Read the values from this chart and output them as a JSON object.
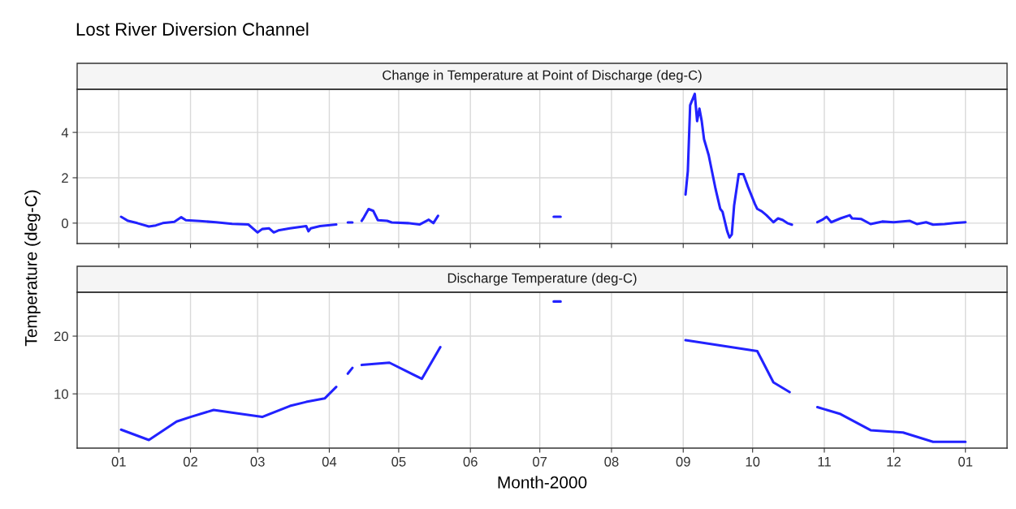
{
  "chart_data": [
    {
      "type": "line",
      "title": "Lost River Diversion Channel",
      "subtitle": "Change in Temperature at Point of Discharge (deg-C)",
      "ylabel": "Temperature (deg-C)",
      "xlim": [
        "1999-12-14",
        "2001-01-19"
      ],
      "ylim": [
        -0.9,
        5.9
      ],
      "yticks": [
        0,
        2,
        4
      ],
      "xticks": [
        {
          "value": "2000-01-01",
          "label": null
        },
        {
          "value": "2000-02-01",
          "label": null
        },
        {
          "value": "2000-03-01",
          "label": null
        },
        {
          "value": "2000-04-01",
          "label": null
        },
        {
          "value": "2000-05-01",
          "label": null
        },
        {
          "value": "2000-06-01",
          "label": null
        },
        {
          "value": "2000-07-01",
          "label": null
        },
        {
          "value": "2000-08-01",
          "label": null
        },
        {
          "value": "2000-09-01",
          "label": null
        },
        {
          "value": "2000-10-01",
          "label": null
        },
        {
          "value": "2000-11-01",
          "label": null
        },
        {
          "value": "2000-12-01",
          "label": null
        },
        {
          "value": "2001-01-01",
          "label": null
        }
      ],
      "tick_labels": "y",
      "grid": true,
      "series": [
        {
          "color": "#2222ff",
          "x": [
            "2000-01-02",
            "2000-01-05",
            "2000-01-09",
            "2000-01-14",
            "2000-01-17",
            "2000-01-20",
            "2000-01-25",
            "2000-01-28",
            "2000-01-30",
            "2000-02-05",
            "2000-02-12",
            "2000-02-19",
            "2000-02-26",
            "2000-03-01",
            "2000-03-03",
            "2000-03-06",
            "2000-03-08",
            "2000-03-10",
            "2000-03-15",
            "2000-03-22",
            "2000-03-23",
            "2000-03-24",
            "2000-03-28",
            "2000-04-04",
            "2000-04-06",
            "2000-04-09",
            "2000-04-11",
            "2000-04-13",
            "2000-04-15",
            "2000-04-16",
            "2000-04-18",
            "2000-04-20",
            "2000-04-22",
            "2000-04-26",
            "2000-04-28",
            "2000-05-05",
            "2000-05-10",
            "2000-05-14",
            "2000-05-16",
            "2000-05-18",
            "2000-06-15",
            "2000-07-07",
            "2000-07-10",
            "2000-08-10",
            "2000-09-02",
            "2000-09-03",
            "2000-09-04",
            "2000-09-06",
            "2000-09-07",
            "2000-09-08",
            "2000-09-09",
            "2000-09-10",
            "2000-09-12",
            "2000-09-14",
            "2000-09-15",
            "2000-09-17",
            "2000-09-18",
            "2000-09-20",
            "2000-09-21",
            "2000-09-22",
            "2000-09-23",
            "2000-09-25",
            "2000-09-27",
            "2000-09-29",
            "2000-10-02",
            "2000-10-03",
            "2000-10-05",
            "2000-10-07",
            "2000-10-10",
            "2000-10-12",
            "2000-10-14",
            "2000-10-16",
            "2000-10-18",
            "2000-10-23",
            "2000-10-29",
            "2000-10-31",
            "2000-11-02",
            "2000-11-04",
            "2000-11-08",
            "2000-11-12",
            "2000-11-13",
            "2000-11-17",
            "2000-11-21",
            "2000-11-26",
            "2000-12-01",
            "2000-12-08",
            "2000-12-11",
            "2000-12-15",
            "2000-12-18",
            "2000-12-23",
            "2000-12-27",
            "2001-01-01"
          ],
          "values": [
            0.28,
            0.1,
            0,
            -0.15,
            -0.1,
            0,
            0.06,
            0.26,
            0.13,
            0.09,
            0.04,
            -0.03,
            -0.06,
            -0.41,
            -0.26,
            -0.23,
            -0.41,
            -0.32,
            -0.23,
            -0.13,
            -0.36,
            -0.23,
            -0.13,
            -0.06,
            null,
            0.03,
            0.03,
            null,
            0.1,
            0.26,
            0.62,
            0.54,
            0.13,
            0.1,
            0.03,
            0,
            -0.06,
            0.15,
            0,
            0.32,
            null,
            0.28,
            0.28,
            null,
            1.26,
            2.3,
            5.2,
            5.7,
            4.5,
            5.05,
            4.5,
            3.7,
            3.0,
            2.0,
            1.5,
            0.63,
            0.5,
            -0.35,
            -0.63,
            -0.5,
            0.77,
            2.16,
            2.16,
            1.6,
            0.84,
            0.63,
            0.52,
            0.35,
            0.04,
            0.21,
            0.14,
            0,
            -0.07,
            null,
            0.04,
            0.14,
            0.28,
            0.04,
            0.21,
            0.35,
            0.21,
            0.18,
            -0.04,
            0.07,
            0.04,
            0.1,
            -0.04,
            0.04,
            -0.07,
            -0.04,
            0,
            0.04
          ]
        }
      ]
    },
    {
      "type": "line",
      "subtitle": "Discharge Temperature (deg-C)",
      "xlabel": "Month-2000",
      "xlim": [
        "1999-12-14",
        "2001-01-19"
      ],
      "ylim": [
        0.6,
        27.6
      ],
      "yticks": [
        10,
        20
      ],
      "xticks": [
        {
          "value": "2000-01-01",
          "label": "01"
        },
        {
          "value": "2000-02-01",
          "label": "02"
        },
        {
          "value": "2000-03-01",
          "label": "03"
        },
        {
          "value": "2000-04-01",
          "label": "04"
        },
        {
          "value": "2000-05-01",
          "label": "05"
        },
        {
          "value": "2000-06-01",
          "label": "06"
        },
        {
          "value": "2000-07-01",
          "label": "07"
        },
        {
          "value": "2000-08-01",
          "label": "08"
        },
        {
          "value": "2000-09-01",
          "label": "09"
        },
        {
          "value": "2000-10-01",
          "label": "10"
        },
        {
          "value": "2000-11-01",
          "label": "11"
        },
        {
          "value": "2000-12-01",
          "label": "12"
        },
        {
          "value": "2001-01-01",
          "label": "01"
        }
      ],
      "grid": true,
      "series": [
        {
          "color": "#2222ff",
          "x": [
            "2000-01-02",
            "2000-01-14",
            "2000-01-26",
            "2000-02-01",
            "2000-02-11",
            "2000-03-03",
            "2000-03-15",
            "2000-03-22",
            "2000-03-30",
            "2000-04-04",
            "2000-04-06",
            "2000-04-09",
            "2000-04-11",
            "2000-04-13",
            "2000-04-15",
            "2000-04-27",
            "2000-05-11",
            "2000-05-19",
            "2000-06-15",
            "2000-07-07",
            "2000-07-10",
            "2000-08-10",
            "2000-09-02",
            "2000-10-03",
            "2000-10-10",
            "2000-10-17",
            "2000-10-23",
            "2000-10-29",
            "2000-11-08",
            "2000-11-21",
            "2000-12-05",
            "2000-12-18",
            "2001-01-01"
          ],
          "values": [
            3.8,
            2.0,
            5.2,
            6.0,
            7.2,
            6.0,
            7.9,
            8.6,
            9.2,
            11.2,
            null,
            13.5,
            14.5,
            null,
            15.0,
            15.4,
            12.6,
            18.1,
            null,
            26.0,
            26.0,
            null,
            19.3,
            17.4,
            12.0,
            10.3,
            null,
            7.7,
            6.5,
            3.7,
            3.3,
            1.7,
            1.7
          ]
        }
      ]
    }
  ]
}
